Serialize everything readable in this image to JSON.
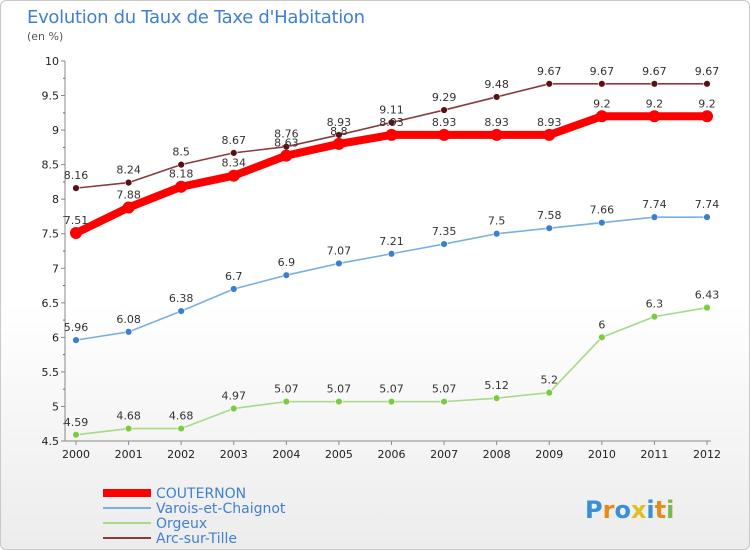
{
  "chart_data": {
    "type": "line",
    "title": "Evolution du Taux de Taxe d'Habitation",
    "subtitle": "(en %)",
    "x": [
      "2000",
      "2001",
      "2002",
      "2003",
      "2004",
      "2005",
      "2006",
      "2007",
      "2008",
      "2009",
      "2010",
      "2011",
      "2012"
    ],
    "yticks": [
      "4.5",
      "5",
      "5.5",
      "6",
      "6.5",
      "7",
      "7.5",
      "8",
      "8.5",
      "9",
      "9.5",
      "10"
    ],
    "ylim": [
      4.5,
      10
    ],
    "grid": false,
    "legend_position": "bottom-left",
    "series": [
      {
        "name": "COUTERNON",
        "color": "#ff0000",
        "marker": "#ff0000",
        "values": [
          7.51,
          7.88,
          8.18,
          8.34,
          8.63,
          8.8,
          8.93,
          8.93,
          8.93,
          8.93,
          9.2,
          9.2,
          9.2
        ],
        "labels": [
          "7.51",
          "7.88",
          "8.18",
          "8.34",
          "8.63",
          "8.8",
          "8.93",
          "8.93",
          "8.93",
          "8.93",
          "9.2",
          "9.2",
          "9.2"
        ]
      },
      {
        "name": "Varois-et-Chaignot",
        "color": "#7ab0e0",
        "marker": "#3a7fd0",
        "values": [
          5.96,
          6.08,
          6.38,
          6.7,
          6.9,
          7.07,
          7.21,
          7.35,
          7.5,
          7.58,
          7.66,
          7.74,
          7.74
        ],
        "labels": [
          "5.96",
          "6.08",
          "6.38",
          "6.7",
          "6.9",
          "7.07",
          "7.21",
          "7.35",
          "7.5",
          "7.58",
          "7.66",
          "7.74",
          "7.74"
        ]
      },
      {
        "name": "Orgeux",
        "color": "#a8d88a",
        "marker": "#7ccc40",
        "values": [
          4.59,
          4.68,
          4.68,
          4.97,
          5.07,
          5.07,
          5.07,
          5.07,
          5.12,
          5.2,
          6,
          6.3,
          6.43
        ],
        "labels": [
          "4.59",
          "4.68",
          "4.68",
          "4.97",
          "5.07",
          "5.07",
          "5.07",
          "5.07",
          "5.12",
          "5.2",
          "6",
          "6.3",
          "6.43"
        ]
      },
      {
        "name": "Arc-sur-Tille",
        "color": "#8a3a3a",
        "marker": "#5a1010",
        "values": [
          8.16,
          8.24,
          8.5,
          8.67,
          8.76,
          8.93,
          9.11,
          9.29,
          9.48,
          9.67,
          9.67,
          9.67,
          9.67
        ],
        "labels": [
          "8.16",
          "8.24",
          "8.5",
          "8.67",
          "8.76",
          "8.93",
          "9.11",
          "9.29",
          "9.48",
          "9.67",
          "9.67",
          "9.67",
          "9.67"
        ]
      }
    ]
  },
  "logo": {
    "letters": [
      "P",
      "r",
      "o",
      "x",
      "i",
      "t",
      "i"
    ],
    "colors": [
      "#3a8fd8",
      "#e88a1a",
      "#3a8fd8",
      "#e0c020",
      "#3a8fd8",
      "#e88a1a",
      "#7ab850"
    ]
  }
}
